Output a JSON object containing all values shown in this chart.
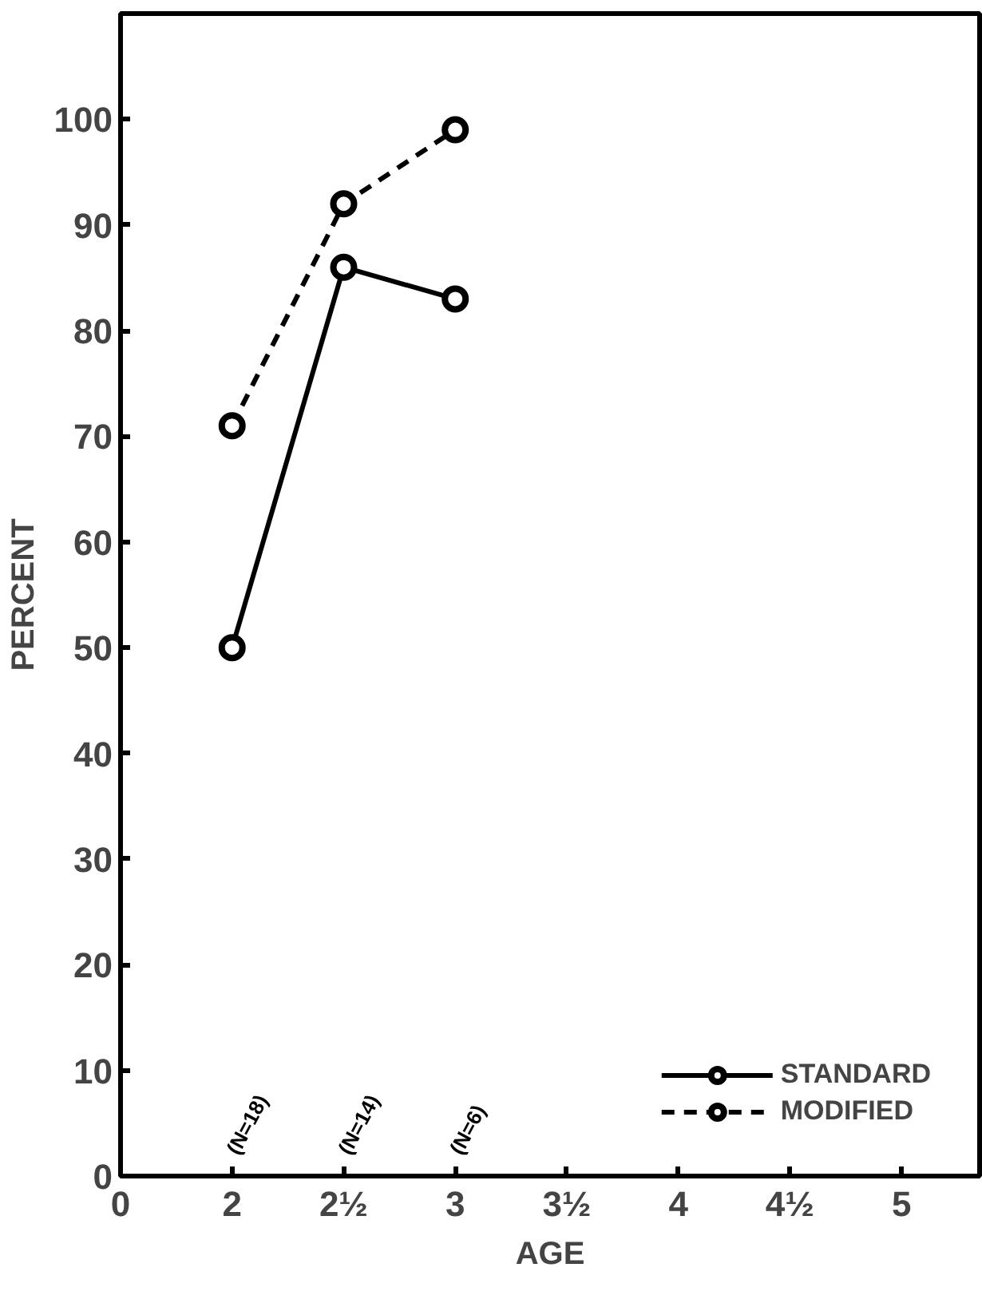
{
  "chart_data": {
    "type": "line",
    "xlabel": "AGE",
    "ylabel": "PERCENT",
    "categories": [
      "0",
      "2",
      "2½",
      "3",
      "3½",
      "4",
      "4½",
      "5"
    ],
    "series": [
      {
        "name": "STANDARD",
        "color": "#000000",
        "line_style": "solid",
        "values": [
          null,
          50,
          86,
          83,
          null,
          null,
          null,
          null
        ]
      },
      {
        "name": "MODIFIED",
        "color": "#000000",
        "line_style": "dashed",
        "values": [
          null,
          71,
          92,
          99,
          null,
          null,
          null,
          null
        ]
      }
    ],
    "ylim": [
      0,
      110
    ],
    "yticks": [
      0,
      10,
      20,
      30,
      40,
      50,
      60,
      70,
      80,
      90,
      100
    ],
    "annotations": [
      "(N=18)",
      "(N=14)",
      "(N=6)"
    ],
    "marker": "circle",
    "legend": "bottom right",
    "grid": false
  }
}
